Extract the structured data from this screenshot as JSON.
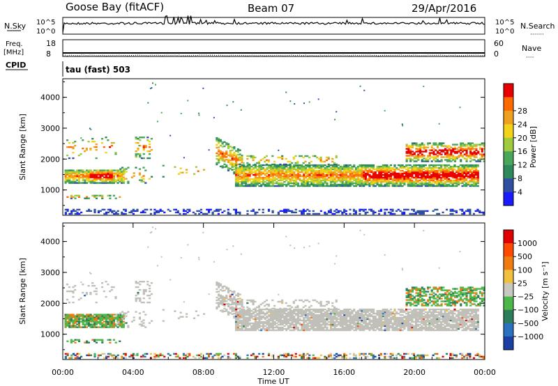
{
  "header": {
    "station": "Goose Bay (fitACF)",
    "beam": "Beam 07",
    "date": "29/Apr/2016"
  },
  "top_panels": {
    "nsky_label": "N.Sky",
    "nsearch_label": "N.Search",
    "nsearch_dots": "·······",
    "nsky_ticks": [
      "10^5",
      "10^0"
    ],
    "nsearch_ticks": [
      "10^5",
      "10^0"
    ],
    "freq_label": "Freq.",
    "freq_unit": "[MHz]",
    "freq_ticks": [
      "18",
      "8"
    ],
    "nave_label": "Nave",
    "nave_dots": "····",
    "nave_ticks": [
      "60",
      "0"
    ],
    "cpid_label": "CPID",
    "cpid_value": "tau (fast) 503"
  },
  "colors": {
    "power": [
      "#1a1aff",
      "#2f4fa0",
      "#2e8a5a",
      "#4aa65a",
      "#9fcc3c",
      "#f2d21b",
      "#f0a020",
      "#ff6a00",
      "#e80000"
    ],
    "velocity": [
      "#1a3fa5",
      "#2a72c0",
      "#2e7d5a",
      "#4cb84a",
      "#c8c8c0",
      "#f0c040",
      "#f07c10",
      "#ff4a00",
      "#e00000"
    ],
    "ground_scatter": "#c0c0b8"
  },
  "chart_data": [
    {
      "type": "heatmap",
      "name": "power",
      "xlabel": "",
      "ylabel": "Slant Range [km]",
      "xlim": [
        0,
        24
      ],
      "ylim": [
        180,
        4600
      ],
      "yticks": [
        "1000",
        "2000",
        "3000",
        "4000"
      ],
      "colorbar": {
        "label": "Power [dB]",
        "ticks": [
          "4",
          "8",
          "12",
          "16",
          "20",
          "24",
          "28"
        ],
        "range": [
          0,
          30
        ]
      }
    },
    {
      "type": "heatmap",
      "name": "velocity",
      "xlabel": "Time UT",
      "ylabel": "Slant Range [km]",
      "xlim": [
        0,
        24
      ],
      "ylim": [
        180,
        4600
      ],
      "xticks": [
        "00:00",
        "04:00",
        "08:00",
        "12:00",
        "16:00",
        "20:00",
        "00:00"
      ],
      "yticks": [
        "1000",
        "2000",
        "3000",
        "4000"
      ],
      "colorbar": {
        "label": "Velocity [m s⁻¹]",
        "ticks": [
          "1000",
          "500",
          "100",
          "25",
          "−25",
          "−100",
          "−500",
          "−1000"
        ]
      }
    }
  ]
}
